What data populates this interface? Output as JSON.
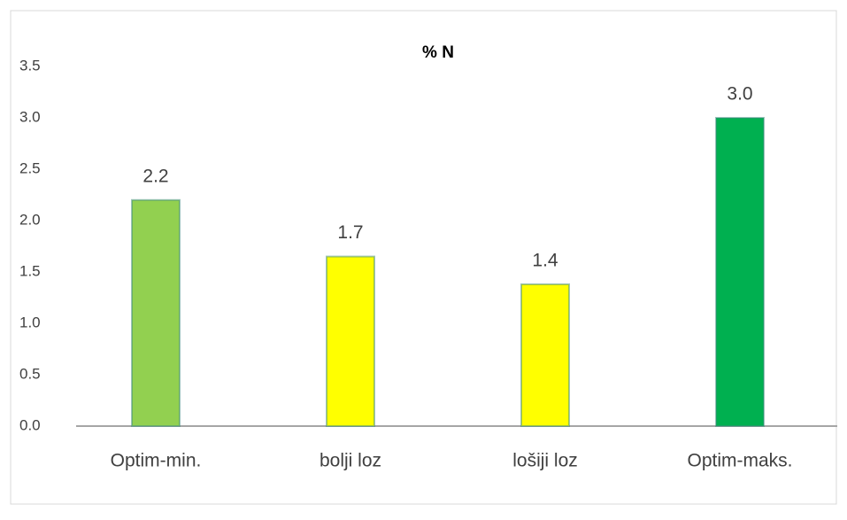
{
  "chart_data": {
    "type": "bar",
    "title": "% N",
    "categories": [
      "Optim-min.",
      "bolji loz",
      "lošiji loz",
      "Optim-maks."
    ],
    "values": [
      2.2,
      1.65,
      1.38,
      3.0
    ],
    "value_labels": [
      "2.2",
      "1.7",
      "1.4",
      "3.0"
    ],
    "colors": [
      "#92d050",
      "#ffff00",
      "#ffff00",
      "#00b050"
    ],
    "ylim": [
      0,
      3.5
    ],
    "yticks": [
      {
        "value": 0,
        "label": "0.0"
      },
      0.5,
      {
        "value": 1,
        "label": "1.0"
      },
      1.5,
      {
        "value": 2,
        "label": "2.0"
      },
      2.5,
      {
        "value": 3,
        "label": "3.0"
      },
      3.5
    ],
    "grid": false
  }
}
